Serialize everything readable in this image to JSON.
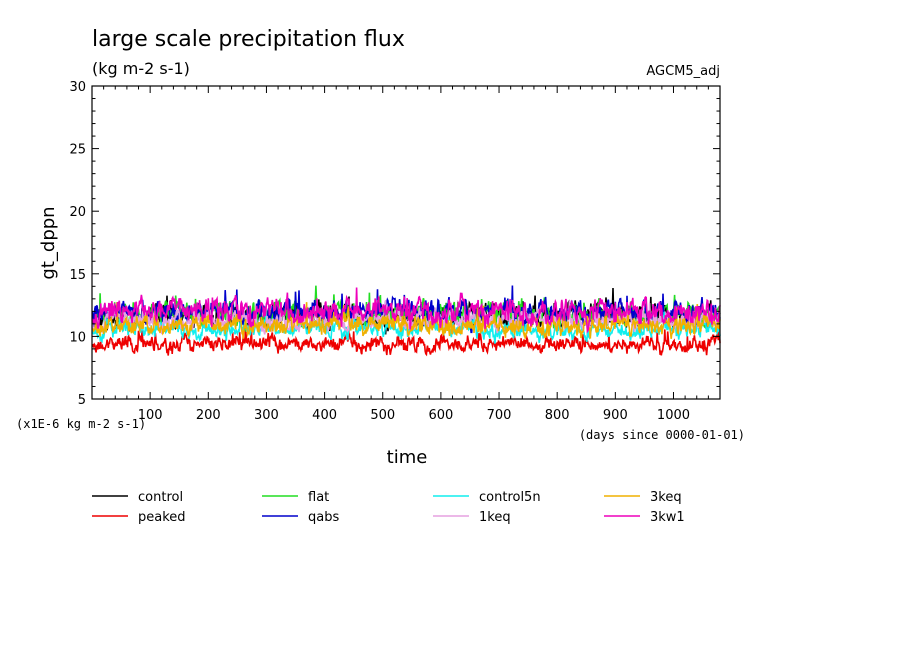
{
  "chart_data": {
    "type": "line",
    "title": "large scale precipitation flux",
    "subtitle": "(kg m-2 s-1)",
    "model_label": "AGCM5_adj",
    "xlabel": "time",
    "ylabel": "gt_dppn",
    "x_unit_note": "(days since 0000-01-01)",
    "y_scale_note": "(x1E-6 kg m-2 s-1)",
    "xlim": [
      0,
      1080
    ],
    "ylim": [
      5,
      30
    ],
    "x_ticks": [
      "100",
      "200",
      "300",
      "400",
      "500",
      "600",
      "700",
      "800",
      "900",
      "1000"
    ],
    "y_ticks": [
      "5",
      "10",
      "15",
      "20",
      "25",
      "30"
    ],
    "grid": false,
    "legend_position": "bottom",
    "series": [
      {
        "name": "control",
        "color": "#000000",
        "mean": 11.6,
        "spread": 0.8,
        "seed": 11
      },
      {
        "name": "peaked",
        "color": "#ee0000",
        "mean": 9.4,
        "spread": 0.55,
        "seed": 23
      },
      {
        "name": "flat",
        "color": "#22dd22",
        "mean": 11.8,
        "spread": 0.8,
        "seed": 37
      },
      {
        "name": "qabs",
        "color": "#0000cc",
        "mean": 11.9,
        "spread": 0.8,
        "seed": 41
      },
      {
        "name": "control5n",
        "color": "#11eeee",
        "mean": 10.6,
        "spread": 0.6,
        "seed": 53
      },
      {
        "name": "1keq",
        "color": "#e6a0e0",
        "mean": 11.3,
        "spread": 0.6,
        "seed": 67
      },
      {
        "name": "3keq",
        "color": "#f0b000",
        "mean": 10.9,
        "spread": 0.7,
        "seed": 79
      },
      {
        "name": "3kw1",
        "color": "#ee00bb",
        "mean": 12.0,
        "spread": 0.85,
        "seed": 97
      }
    ]
  }
}
